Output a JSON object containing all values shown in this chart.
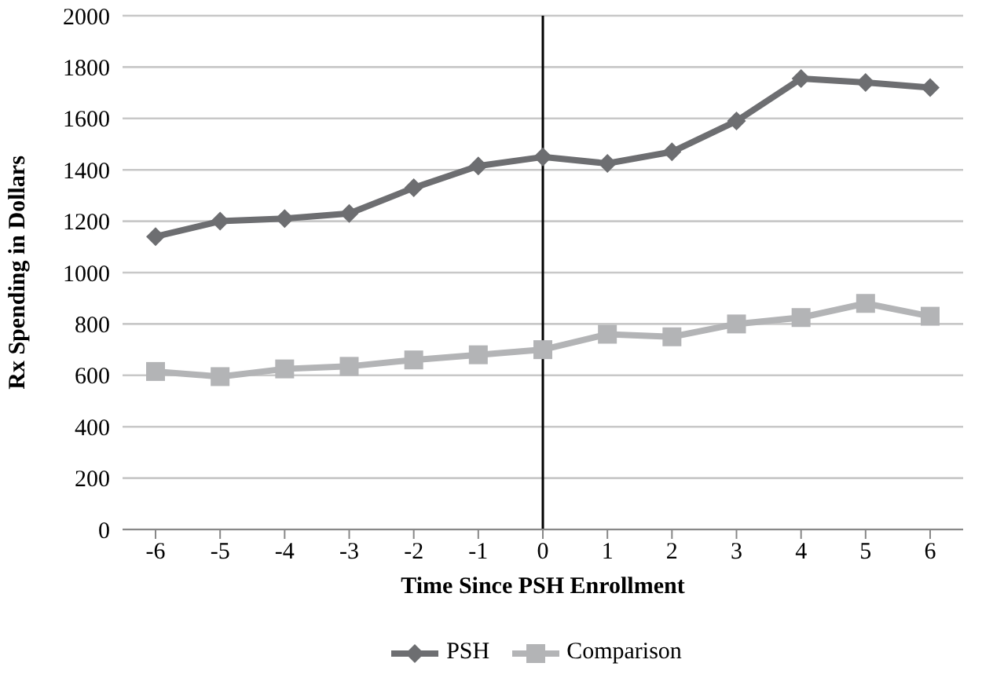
{
  "chart_data": {
    "type": "line",
    "categories": [
      "-6",
      "-5",
      "-4",
      "-3",
      "-2",
      "-1",
      "0",
      "1",
      "2",
      "3",
      "4",
      "5",
      "6"
    ],
    "series": [
      {
        "name": "PSH",
        "color": "#6d6e71",
        "marker": "diamond",
        "values": [
          1140,
          1200,
          1210,
          1230,
          1330,
          1415,
          1450,
          1425,
          1470,
          1590,
          1755,
          1740,
          1720
        ]
      },
      {
        "name": "Comparison",
        "color": "#b3b4b6",
        "marker": "square",
        "values": [
          615,
          595,
          625,
          635,
          660,
          680,
          700,
          760,
          750,
          800,
          825,
          880,
          830
        ]
      }
    ],
    "xlabel": "Time Since PSH Enrollment",
    "ylabel": "Rx Spending in Dollars",
    "ylim": [
      0,
      2000
    ],
    "yticks": [
      0,
      200,
      400,
      600,
      800,
      1000,
      1200,
      1400,
      1600,
      1800,
      2000
    ],
    "ref_lines": [
      {
        "axis": "x",
        "value": "0",
        "color": "#000000"
      }
    ],
    "grid": "y",
    "legend": "bottom",
    "line_style": "solid"
  }
}
